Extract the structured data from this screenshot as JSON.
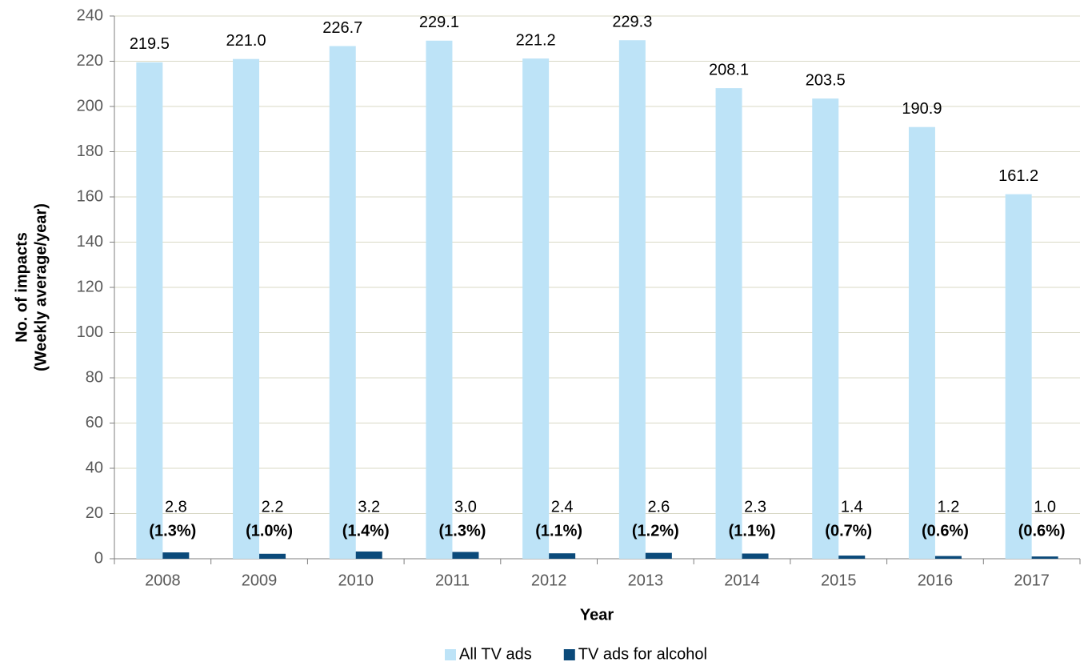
{
  "chart_data": {
    "type": "bar",
    "xlabel": "Year",
    "ylabel": [
      "No. of impacts",
      "(Weekly average/year)"
    ],
    "categories": [
      "2008",
      "2009",
      "2010",
      "2011",
      "2012",
      "2013",
      "2014",
      "2015",
      "2016",
      "2017"
    ],
    "series": [
      {
        "name": "All TV ads",
        "color": "#bde3f7",
        "values": [
          219.5,
          221.0,
          226.7,
          229.1,
          221.2,
          229.3,
          208.1,
          203.5,
          190.9,
          161.2
        ],
        "value_labels": [
          "219.5",
          "221.0",
          "226.7",
          "229.1",
          "221.2",
          "229.3",
          "208.1",
          "203.5",
          "190.9",
          "161.2"
        ]
      },
      {
        "name": "TV ads for alcohol",
        "color": "#0b4a7a",
        "values": [
          2.8,
          2.2,
          3.2,
          3.0,
          2.4,
          2.6,
          2.3,
          1.4,
          1.2,
          1.0
        ],
        "value_labels": [
          "2.8",
          "2.2",
          "3.2",
          "3.0",
          "2.4",
          "2.6",
          "2.3",
          "1.4",
          "1.2",
          "1.0"
        ],
        "share_labels": [
          "(1.3%)",
          "(1.0%)",
          "(1.4%)",
          "(1.3%)",
          "(1.1%)",
          "(1.2%)",
          "(1.1%)",
          "(0.7%)",
          "(0.6%)",
          "(0.6%)"
        ]
      }
    ],
    "ylim": [
      0,
      240
    ],
    "yticks": [
      0,
      20,
      40,
      60,
      80,
      100,
      120,
      140,
      160,
      180,
      200,
      220,
      240
    ],
    "grid": true,
    "legend": "bottom"
  }
}
